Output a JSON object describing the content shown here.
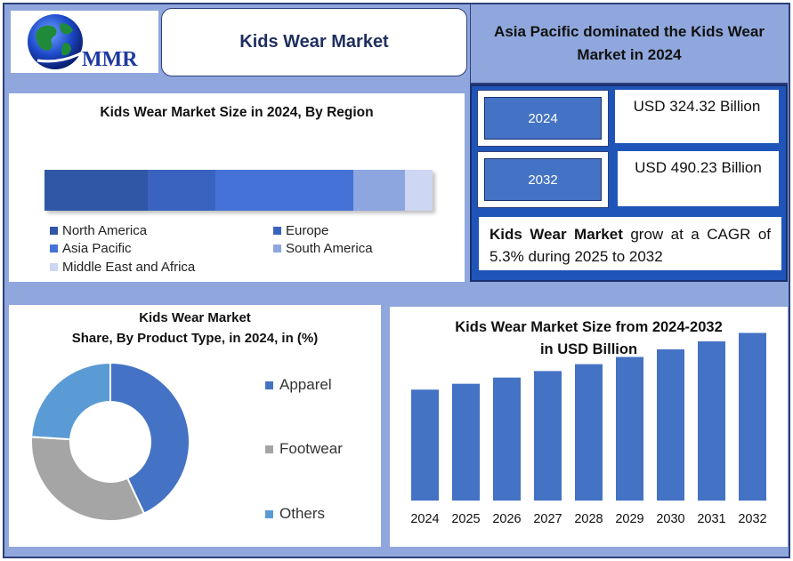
{
  "header": {
    "logo_text": "MMR",
    "title": "Kids Wear Market",
    "headline": "Asia Pacific dominated the Kids Wear Market in 2024"
  },
  "stats": {
    "items": [
      {
        "year": "2024",
        "value": "USD 324.32 Billion"
      },
      {
        "year": "2032",
        "value": "USD 490.23 Billion"
      }
    ],
    "cagr_bold": "Kids Wear Market",
    "cagr_rest": " grow at a CAGR of 5.3% during 2025 to 2032"
  },
  "colors": {
    "north_america": "#2f57a5",
    "europe": "#3a63bf",
    "asia_pacific": "#4472d6",
    "south_america": "#8ea6e0",
    "middle_east_africa": "#cdd6f2",
    "apparel": "#4472c4",
    "footwear": "#a5a5a5",
    "others": "#5b9bd5",
    "bar": "#4472c4"
  },
  "chart_data": [
    {
      "type": "bar",
      "orientation": "horizontal-stacked",
      "title": "Kids Wear Market Size in 2024, By Region",
      "series": [
        {
          "name": "North America",
          "value": 26.5
        },
        {
          "name": "Europe",
          "value": 17.5
        },
        {
          "name": "Asia Pacific",
          "value": 35.5
        },
        {
          "name": "South America",
          "value": 13.5
        },
        {
          "name": "Middle East and Africa",
          "value": 7.0
        }
      ],
      "legend_position": "bottom"
    },
    {
      "type": "pie",
      "title": "Kids Wear Market",
      "subtitle": "Share, By Product Type, in 2024, in (%)",
      "slices": [
        {
          "name": "Apparel",
          "value": 43
        },
        {
          "name": "Footwear",
          "value": 33
        },
        {
          "name": "Others",
          "value": 24
        }
      ],
      "legend_position": "right"
    },
    {
      "type": "bar",
      "title": "Kids Wear Market Size from 2024-2032",
      "subtitle": "in USD Billion",
      "categories": [
        "2024",
        "2025",
        "2026",
        "2027",
        "2028",
        "2029",
        "2030",
        "2031",
        "2032"
      ],
      "values": [
        324.32,
        341.5,
        359.6,
        378.7,
        398.8,
        419.9,
        442.2,
        465.6,
        490.23
      ],
      "ylim": [
        0,
        520
      ],
      "grid": false
    }
  ]
}
